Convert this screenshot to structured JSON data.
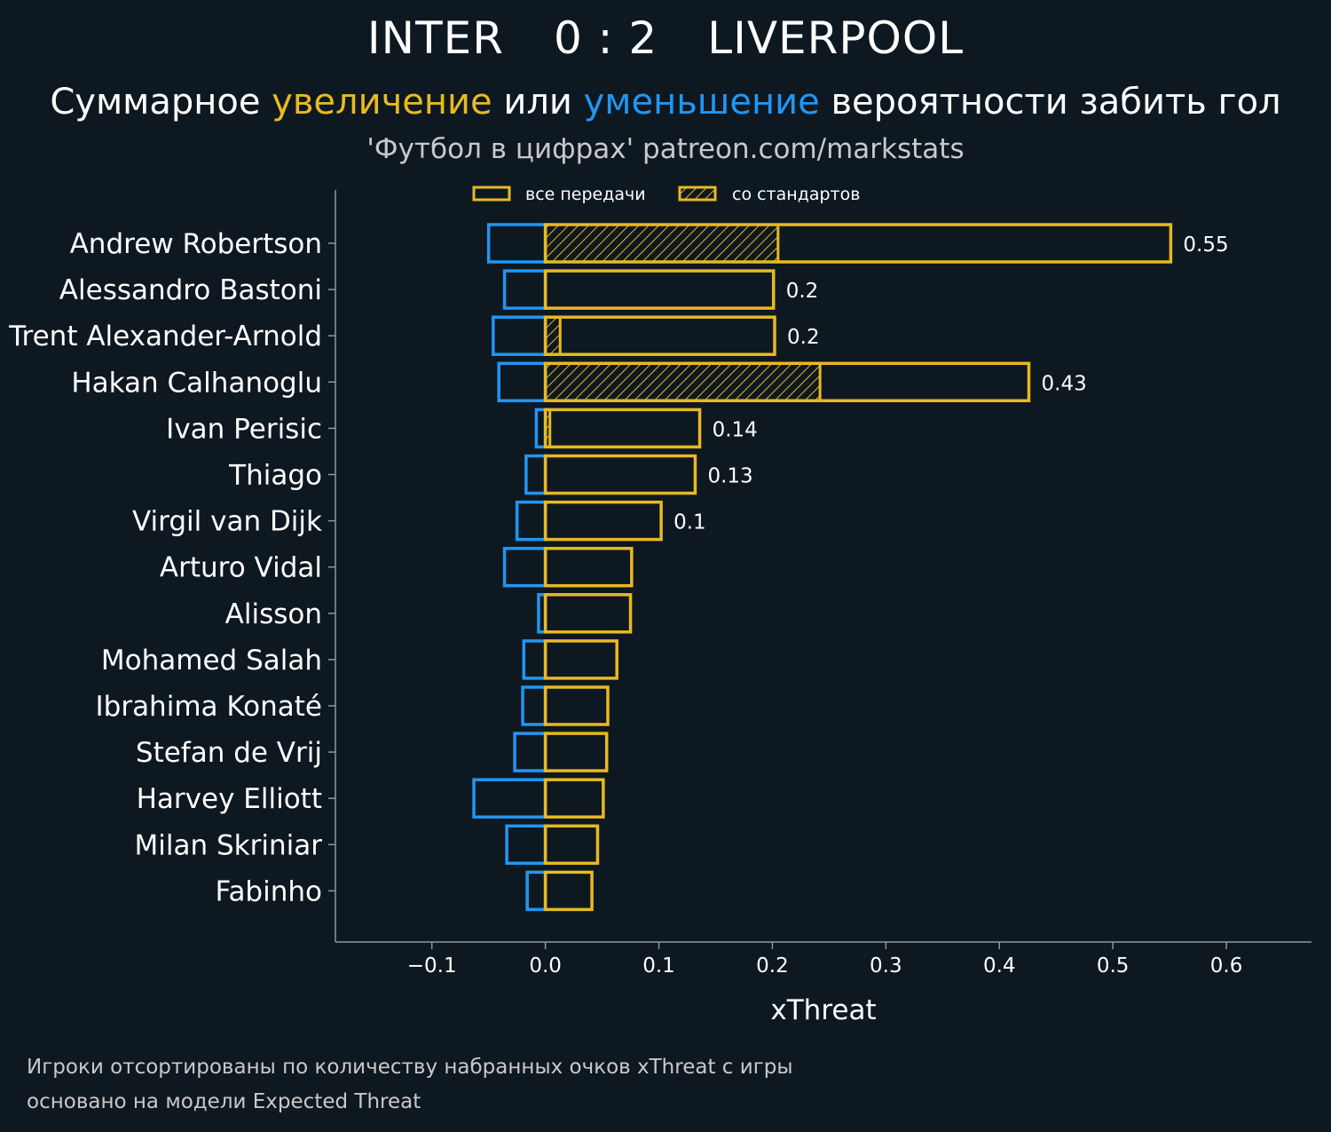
{
  "header": {
    "home_team": "INTER",
    "score": "0 : 2",
    "away_team": "LIVERPOOL",
    "subtitle_part1": "Суммарное ",
    "subtitle_increase": "увеличение",
    "subtitle_part2": " или ",
    "subtitle_decrease": "уменьшение",
    "subtitle_part3": " вероятности забить гол",
    "source": "'Футбол в цифрах' patreon.com/markstats"
  },
  "footnotes": {
    "line1": "Игроки отсортированы по количеству набранных очков xThreat с игры",
    "line2": "основано на модели Expected Threat"
  },
  "colors": {
    "background": "#0e1820",
    "increase": "#e8b923",
    "decrease": "#2196f3",
    "axis": "#8a9aa3",
    "text": "#ffffff"
  },
  "chart_data": {
    "type": "bar",
    "orientation": "horizontal",
    "xlabel": "xThreat",
    "xlim": [
      -0.185,
      0.675
    ],
    "xticks": [
      -0.1,
      0.0,
      0.1,
      0.2,
      0.3,
      0.4,
      0.5,
      0.6
    ],
    "xtick_labels": [
      "−0.1",
      "0.0",
      "0.1",
      "0.2",
      "0.3",
      "0.4",
      "0.5",
      "0.6"
    ],
    "legend": {
      "position": "top",
      "entries": [
        "все передачи",
        "со стандартов"
      ]
    },
    "players": [
      "Andrew Robertson",
      "Alessandro Bastoni",
      "Trent Alexander-Arnold",
      "Hakan Calhanoglu",
      "Ivan Perisic",
      "Thiago",
      "Virgil van Dijk",
      "Arturo Vidal",
      "Alisson",
      "Mohamed Salah",
      "Ibrahima Konaté",
      "Stefan de Vrij",
      "Harvey Elliott",
      "Milan Skriniar",
      "Fabinho"
    ],
    "series": [
      {
        "name": "все передачи (увеличение)",
        "values": [
          0.551,
          0.201,
          0.202,
          0.426,
          0.136,
          0.132,
          0.102,
          0.076,
          0.075,
          0.063,
          0.055,
          0.054,
          0.051,
          0.046,
          0.041
        ]
      },
      {
        "name": "со стандартов",
        "values": [
          0.205,
          0,
          0.013,
          0.242,
          0.004,
          0,
          0,
          0,
          0,
          0,
          0,
          0,
          0,
          0,
          0
        ]
      },
      {
        "name": "уменьшение",
        "values": [
          -0.05,
          -0.036,
          -0.046,
          -0.041,
          -0.008,
          -0.017,
          -0.025,
          -0.036,
          -0.006,
          -0.019,
          -0.02,
          -0.027,
          -0.063,
          -0.034,
          -0.016
        ]
      }
    ],
    "value_labels": [
      "0.55",
      "0.2",
      "0.2",
      "0.43",
      "0.14",
      "0.13",
      "0.1",
      "",
      "",
      "",
      "",
      "",
      "",
      "",
      ""
    ]
  }
}
